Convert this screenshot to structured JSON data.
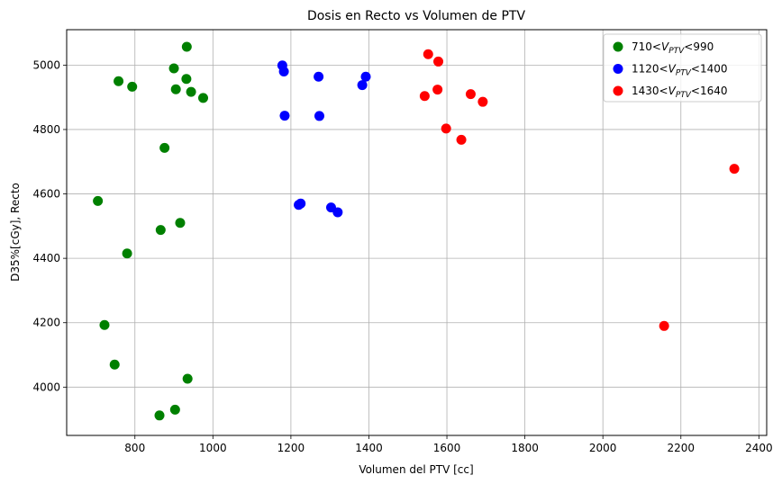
{
  "chart_data": {
    "type": "scatter",
    "title": "Dosis en Recto vs Volumen de PTV",
    "xlabel": "Volumen del PTV [cc]",
    "ylabel": "D35%[cGy], Recto",
    "xlim": [
      625,
      2420
    ],
    "ylim": [
      3850,
      5110
    ],
    "xticks": [
      800,
      1000,
      1200,
      1400,
      1600,
      1800,
      2000,
      2200,
      2400
    ],
    "yticks": [
      4000,
      4200,
      4400,
      4600,
      4800,
      5000
    ],
    "grid": true,
    "legend_position": "top-right",
    "series": [
      {
        "name": "710<V_PTV<990",
        "legend_parts": [
          "710<",
          "V",
          "PTV",
          "<990"
        ],
        "color": "#008000",
        "points": [
          [
            705,
            4578
          ],
          [
            722,
            4193
          ],
          [
            748,
            4070
          ],
          [
            758,
            4950
          ],
          [
            780,
            4415
          ],
          [
            793,
            4933
          ],
          [
            863,
            3912
          ],
          [
            866,
            4488
          ],
          [
            876,
            4743
          ],
          [
            900,
            4990
          ],
          [
            903,
            3930
          ],
          [
            905,
            4925
          ],
          [
            916,
            4510
          ],
          [
            932,
            4957
          ],
          [
            933,
            5057
          ],
          [
            935,
            4026
          ],
          [
            944,
            4917
          ],
          [
            975,
            4898
          ]
        ]
      },
      {
        "name": "1120<V_PTV<1400",
        "legend_parts": [
          "1120<",
          "V",
          "PTV",
          "<1400"
        ],
        "color": "#0000ff",
        "points": [
          [
            1178,
            4999
          ],
          [
            1182,
            4980
          ],
          [
            1184,
            4843
          ],
          [
            1220,
            4566
          ],
          [
            1225,
            4570
          ],
          [
            1271,
            4964
          ],
          [
            1273,
            4842
          ],
          [
            1303,
            4558
          ],
          [
            1320,
            4543
          ],
          [
            1383,
            4938
          ],
          [
            1392,
            4964
          ]
        ]
      },
      {
        "name": "1430<V_PTV<1640",
        "legend_parts": [
          "1430<",
          "V",
          "PTV",
          "<1640"
        ],
        "color": "#ff0000",
        "points": [
          [
            1543,
            4904
          ],
          [
            1552,
            5034
          ],
          [
            1576,
            4924
          ],
          [
            1578,
            5011
          ],
          [
            1598,
            4803
          ],
          [
            1637,
            4768
          ],
          [
            1661,
            4910
          ],
          [
            1692,
            4886
          ],
          [
            2157,
            4190
          ],
          [
            2337,
            4678
          ]
        ]
      }
    ]
  }
}
